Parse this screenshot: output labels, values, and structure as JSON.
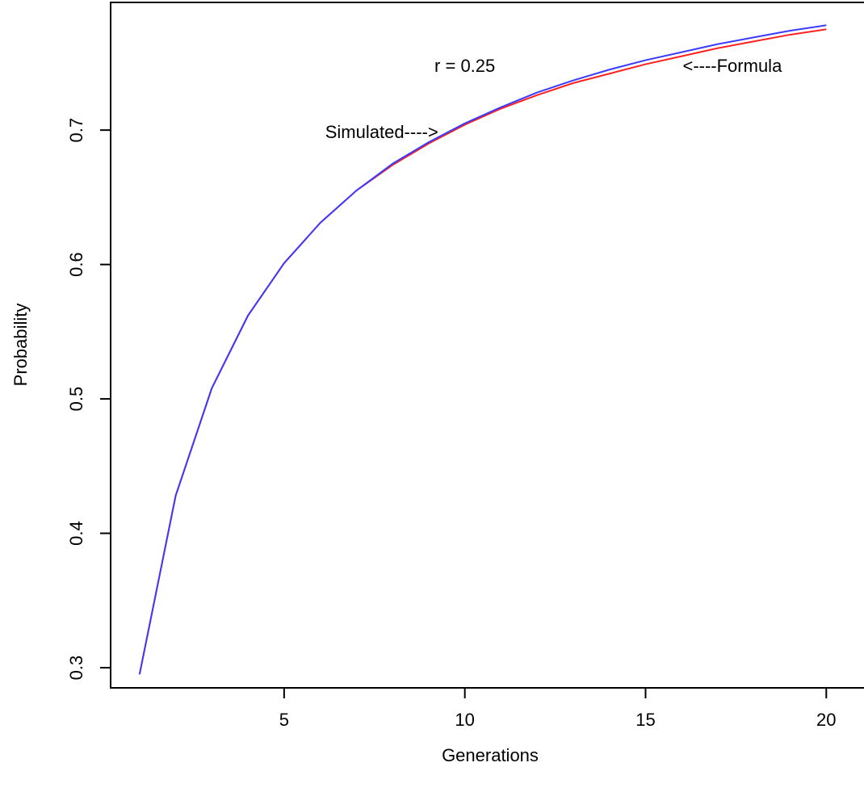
{
  "chart_data": {
    "type": "line",
    "title": "",
    "xlabel": "Generations",
    "ylabel": "Probability",
    "xlim": [
      0.2,
      21.2
    ],
    "ylim": [
      0.285,
      0.795
    ],
    "x": [
      1,
      2,
      3,
      4,
      5,
      6,
      7,
      8,
      9,
      10,
      11,
      12,
      13,
      14,
      15,
      16,
      17,
      18,
      19,
      20
    ],
    "x_ticks": [
      5,
      10,
      15,
      20
    ],
    "x_tick_labels": [
      "5",
      "10",
      "15",
      "20"
    ],
    "y_ticks": [
      0.3,
      0.4,
      0.5,
      0.6,
      0.7
    ],
    "y_tick_labels": [
      "0.3",
      "0.4",
      "0.5",
      "0.6",
      "0.7"
    ],
    "grid": false,
    "series": [
      {
        "color": "#ff2020",
        "values": [
          0.295,
          0.428,
          0.508,
          0.562,
          0.601,
          0.631,
          0.655,
          0.674,
          0.69,
          0.704,
          0.716,
          0.726,
          0.735,
          0.742,
          0.749,
          0.755,
          0.761,
          0.766,
          0.771,
          0.775
        ]
      },
      {
        "color": "#3b3bff",
        "values": [
          0.295,
          0.428,
          0.508,
          0.562,
          0.601,
          0.631,
          0.655,
          0.675,
          0.691,
          0.705,
          0.717,
          0.728,
          0.737,
          0.745,
          0.752,
          0.758,
          0.764,
          0.769,
          0.774,
          0.778
        ]
      }
    ],
    "annotations": [
      {
        "text": "r = 0.25",
        "x": 10.0,
        "y": 0.748
      },
      {
        "text": "Simulated---->",
        "x": 7.7,
        "y": 0.699
      },
      {
        "text": "<----Formula",
        "x": 17.4,
        "y": 0.748
      }
    ]
  }
}
